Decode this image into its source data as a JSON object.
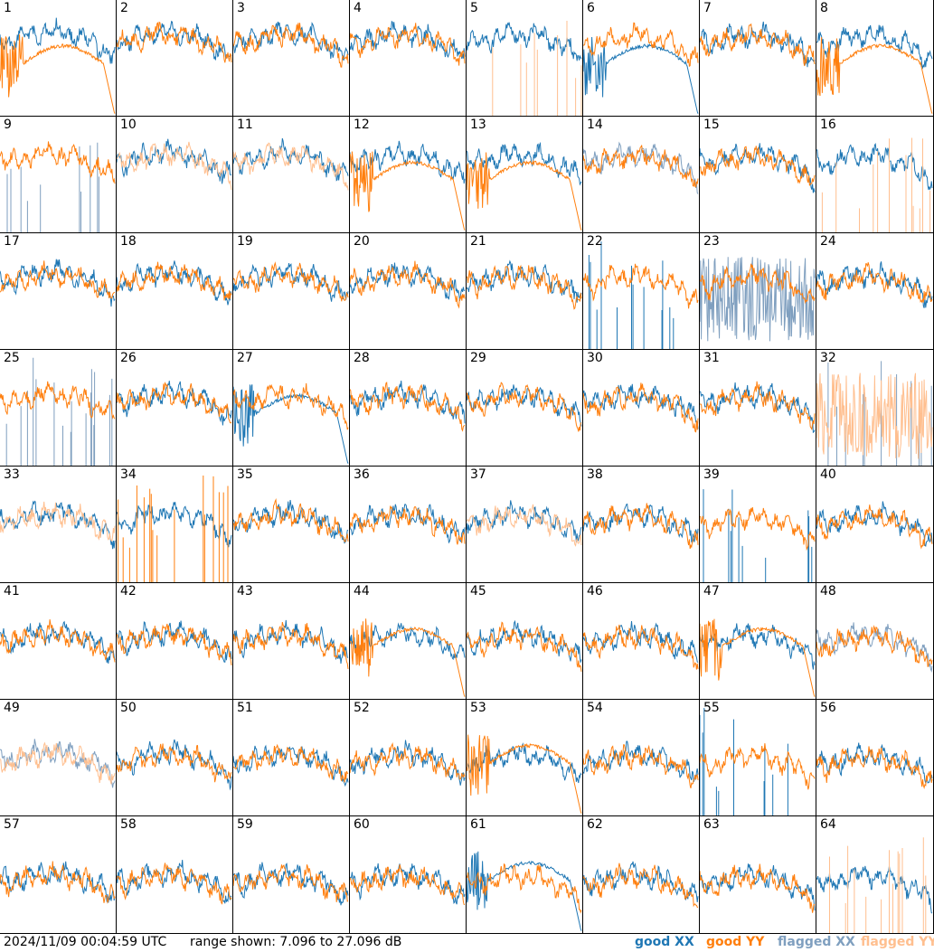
{
  "footer": {
    "timestamp": "2024/11/09 00:04:59 UTC",
    "range": "range shown: 7.096 to 27.096 dB"
  },
  "legend": {
    "good_xx": "good XX",
    "good_yy": "good YY",
    "flagged_xx": "flagged XX",
    "flagged_yy": "flagged YY"
  },
  "colors": {
    "good_xx": "#1f77b4",
    "good_yy": "#ff7f0e",
    "flagged_xx": "#7f9fbf",
    "flagged_yy": "#ffbf8f"
  },
  "chart_data": {
    "type": "line",
    "layout": "8x8 grid of small multiples (tiles 1-64)",
    "ylim": [
      7.096,
      27.096
    ],
    "yunits": "dB",
    "series": [
      {
        "name": "good XX"
      },
      {
        "name": "good YY"
      },
      {
        "name": "flagged XX"
      },
      {
        "name": "flagged YY"
      }
    ],
    "tiles": [
      {
        "id": "1",
        "xx": "good",
        "yy": "good",
        "xx_shape": "normal",
        "yy_shape": "hump"
      },
      {
        "id": "2",
        "xx": "good",
        "yy": "good",
        "xx_shape": "normal",
        "yy_shape": "normal"
      },
      {
        "id": "3",
        "xx": "good",
        "yy": "good",
        "xx_shape": "normal",
        "yy_shape": "normal"
      },
      {
        "id": "4",
        "xx": "good",
        "yy": "good",
        "xx_shape": "normal",
        "yy_shape": "normal"
      },
      {
        "id": "5",
        "xx": "good",
        "yy": "flagged",
        "xx_shape": "normal",
        "yy_shape": "spikes"
      },
      {
        "id": "6",
        "xx": "good",
        "yy": "good",
        "xx_shape": "hump",
        "yy_shape": "normal"
      },
      {
        "id": "7",
        "xx": "good",
        "yy": "good",
        "xx_shape": "normal",
        "yy_shape": "normal"
      },
      {
        "id": "8",
        "xx": "good",
        "yy": "good",
        "xx_shape": "normal",
        "yy_shape": "hump"
      },
      {
        "id": "9",
        "xx": "flagged",
        "yy": "good",
        "xx_shape": "spikes",
        "yy_shape": "normal"
      },
      {
        "id": "10",
        "xx": "good",
        "yy": "flagged",
        "xx_shape": "normal",
        "yy_shape": "normal"
      },
      {
        "id": "11",
        "xx": "good",
        "yy": "flagged",
        "xx_shape": "normal",
        "yy_shape": "normal"
      },
      {
        "id": "12",
        "xx": "good",
        "yy": "good",
        "xx_shape": "normal",
        "yy_shape": "hump"
      },
      {
        "id": "13",
        "xx": "good",
        "yy": "good",
        "xx_shape": "normal",
        "yy_shape": "hump"
      },
      {
        "id": "14",
        "xx": "flagged",
        "yy": "good",
        "xx_shape": "normal",
        "yy_shape": "normal"
      },
      {
        "id": "15",
        "xx": "good",
        "yy": "good",
        "xx_shape": "normal",
        "yy_shape": "normal"
      },
      {
        "id": "16",
        "xx": "good",
        "yy": "flagged",
        "xx_shape": "normal",
        "yy_shape": "spikes"
      },
      {
        "id": "17",
        "xx": "good",
        "yy": "good",
        "xx_shape": "normal",
        "yy_shape": "normal"
      },
      {
        "id": "18",
        "xx": "good",
        "yy": "good",
        "xx_shape": "normal",
        "yy_shape": "normal"
      },
      {
        "id": "19",
        "xx": "good",
        "yy": "good",
        "xx_shape": "normal",
        "yy_shape": "normal"
      },
      {
        "id": "20",
        "xx": "good",
        "yy": "good",
        "xx_shape": "normal",
        "yy_shape": "normal"
      },
      {
        "id": "21",
        "xx": "good",
        "yy": "good",
        "xx_shape": "normal",
        "yy_shape": "normal"
      },
      {
        "id": "22",
        "xx": "good",
        "yy": "good",
        "xx_shape": "spikes",
        "yy_shape": "normal"
      },
      {
        "id": "23",
        "xx": "flagged",
        "yy": "good",
        "xx_shape": "noisy",
        "yy_shape": "normal"
      },
      {
        "id": "24",
        "xx": "good",
        "yy": "good",
        "xx_shape": "normal",
        "yy_shape": "normal"
      },
      {
        "id": "25",
        "xx": "flagged",
        "yy": "good",
        "xx_shape": "spikes",
        "yy_shape": "normal"
      },
      {
        "id": "26",
        "xx": "good",
        "yy": "good",
        "xx_shape": "normal",
        "yy_shape": "normal"
      },
      {
        "id": "27",
        "xx": "good",
        "yy": "good",
        "xx_shape": "hump",
        "yy_shape": "normal"
      },
      {
        "id": "28",
        "xx": "good",
        "yy": "good",
        "xx_shape": "normal",
        "yy_shape": "normal"
      },
      {
        "id": "29",
        "xx": "good",
        "yy": "good",
        "xx_shape": "normal",
        "yy_shape": "normal"
      },
      {
        "id": "30",
        "xx": "good",
        "yy": "good",
        "xx_shape": "normal",
        "yy_shape": "normal"
      },
      {
        "id": "31",
        "xx": "good",
        "yy": "good",
        "xx_shape": "normal",
        "yy_shape": "normal"
      },
      {
        "id": "32",
        "xx": "flagged",
        "yy": "flagged",
        "xx_shape": "spikes",
        "yy_shape": "noisy"
      },
      {
        "id": "33",
        "xx": "good",
        "yy": "flagged",
        "xx_shape": "normal",
        "yy_shape": "normal"
      },
      {
        "id": "34",
        "xx": "good",
        "yy": "good",
        "xx_shape": "normal",
        "yy_shape": "spikes"
      },
      {
        "id": "35",
        "xx": "good",
        "yy": "good",
        "xx_shape": "normal",
        "yy_shape": "normal"
      },
      {
        "id": "36",
        "xx": "good",
        "yy": "good",
        "xx_shape": "normal",
        "yy_shape": "normal"
      },
      {
        "id": "37",
        "xx": "good",
        "yy": "flagged",
        "xx_shape": "normal",
        "yy_shape": "normal"
      },
      {
        "id": "38",
        "xx": "good",
        "yy": "good",
        "xx_shape": "normal",
        "yy_shape": "normal"
      },
      {
        "id": "39",
        "xx": "good",
        "yy": "good",
        "xx_shape": "spikes",
        "yy_shape": "normal"
      },
      {
        "id": "40",
        "xx": "good",
        "yy": "good",
        "xx_shape": "normal",
        "yy_shape": "normal"
      },
      {
        "id": "41",
        "xx": "good",
        "yy": "good",
        "xx_shape": "normal",
        "yy_shape": "normal"
      },
      {
        "id": "42",
        "xx": "good",
        "yy": "good",
        "xx_shape": "normal",
        "yy_shape": "normal"
      },
      {
        "id": "43",
        "xx": "good",
        "yy": "good",
        "xx_shape": "normal",
        "yy_shape": "normal"
      },
      {
        "id": "44",
        "xx": "good",
        "yy": "good",
        "xx_shape": "normal",
        "yy_shape": "hump"
      },
      {
        "id": "45",
        "xx": "good",
        "yy": "good",
        "xx_shape": "normal",
        "yy_shape": "normal"
      },
      {
        "id": "46",
        "xx": "good",
        "yy": "good",
        "xx_shape": "normal",
        "yy_shape": "normal"
      },
      {
        "id": "47",
        "xx": "good",
        "yy": "good",
        "xx_shape": "normal",
        "yy_shape": "hump"
      },
      {
        "id": "48",
        "xx": "flagged",
        "yy": "good",
        "xx_shape": "normal",
        "yy_shape": "normal"
      },
      {
        "id": "49",
        "xx": "flagged",
        "yy": "flagged",
        "xx_shape": "normal",
        "yy_shape": "normal"
      },
      {
        "id": "50",
        "xx": "good",
        "yy": "good",
        "xx_shape": "normal",
        "yy_shape": "normal"
      },
      {
        "id": "51",
        "xx": "good",
        "yy": "good",
        "xx_shape": "normal",
        "yy_shape": "normal"
      },
      {
        "id": "52",
        "xx": "good",
        "yy": "good",
        "xx_shape": "normal",
        "yy_shape": "normal"
      },
      {
        "id": "53",
        "xx": "good",
        "yy": "good",
        "xx_shape": "normal",
        "yy_shape": "hump"
      },
      {
        "id": "54",
        "xx": "good",
        "yy": "good",
        "xx_shape": "normal",
        "yy_shape": "normal"
      },
      {
        "id": "55",
        "xx": "good",
        "yy": "good",
        "xx_shape": "spikes",
        "yy_shape": "normal"
      },
      {
        "id": "56",
        "xx": "good",
        "yy": "good",
        "xx_shape": "normal",
        "yy_shape": "normal"
      },
      {
        "id": "57",
        "xx": "good",
        "yy": "good",
        "xx_shape": "normal",
        "yy_shape": "normal"
      },
      {
        "id": "58",
        "xx": "good",
        "yy": "good",
        "xx_shape": "normal",
        "yy_shape": "normal"
      },
      {
        "id": "59",
        "xx": "good",
        "yy": "good",
        "xx_shape": "normal",
        "yy_shape": "normal"
      },
      {
        "id": "60",
        "xx": "good",
        "yy": "good",
        "xx_shape": "normal",
        "yy_shape": "normal"
      },
      {
        "id": "61",
        "xx": "good",
        "yy": "good",
        "xx_shape": "hump",
        "yy_shape": "normal"
      },
      {
        "id": "62",
        "xx": "good",
        "yy": "good",
        "xx_shape": "normal",
        "yy_shape": "normal"
      },
      {
        "id": "63",
        "xx": "good",
        "yy": "good",
        "xx_shape": "normal",
        "yy_shape": "normal"
      },
      {
        "id": "64",
        "xx": "good",
        "yy": "flagged",
        "xx_shape": "normal",
        "yy_shape": "spikes"
      }
    ]
  }
}
